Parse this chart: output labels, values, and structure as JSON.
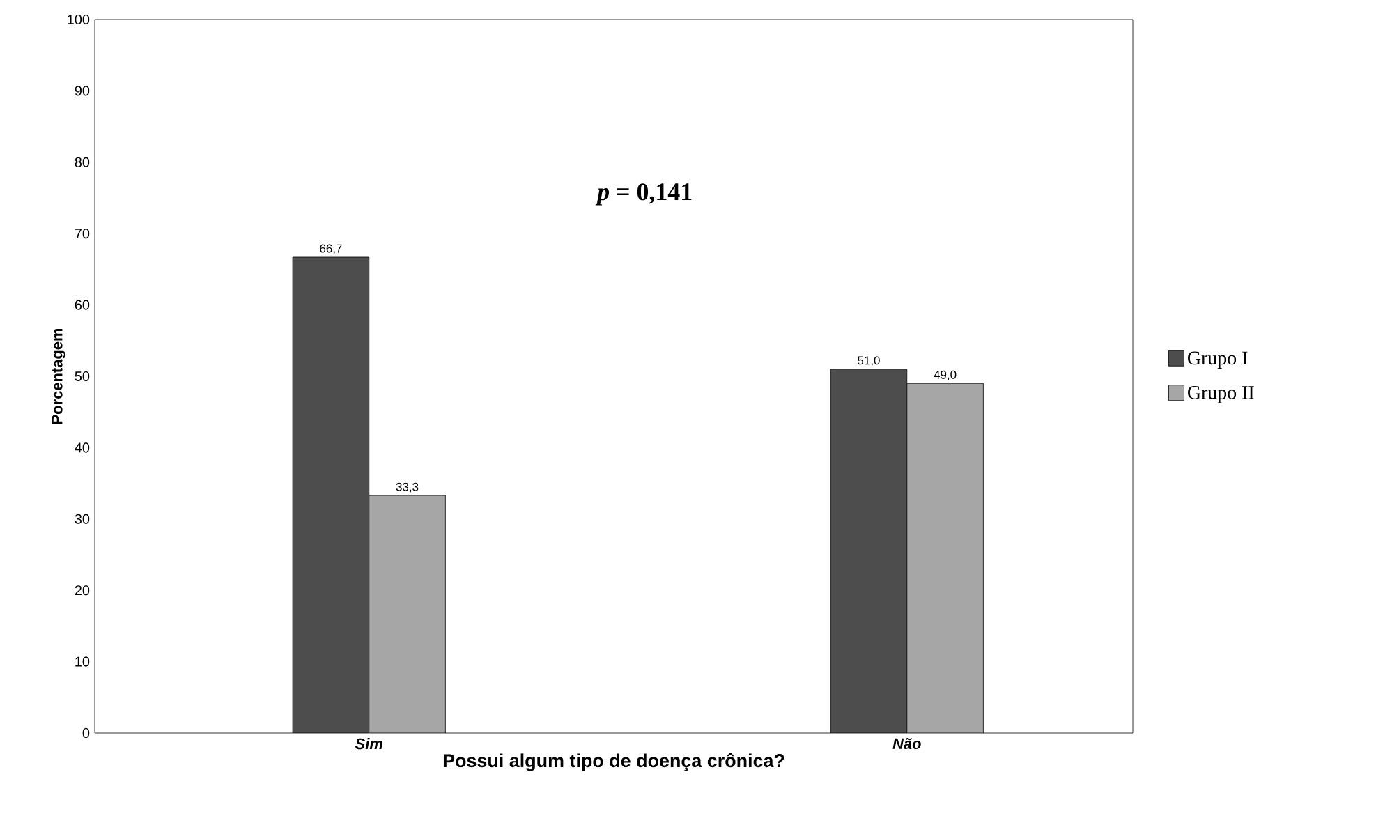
{
  "chart_data": {
    "type": "bar",
    "xlabel": "Possui algum tipo de doença crônica?",
    "ylabel": "Porcentagem",
    "categories": [
      "Sim",
      "Não"
    ],
    "series": [
      {
        "name": "Grupo I",
        "color": "#4d4d4d",
        "values": [
          66.7,
          51.0
        ],
        "value_labels": [
          "66,7",
          "51,0"
        ]
      },
      {
        "name": "Grupo II",
        "color": "#a6a6a6",
        "values": [
          33.3,
          49.0
        ],
        "value_labels": [
          "33,3",
          "49,0"
        ]
      }
    ],
    "ylim": [
      0,
      100
    ],
    "yticks": [
      0,
      10,
      20,
      30,
      40,
      50,
      60,
      70,
      80,
      90,
      100
    ],
    "annotations": [
      "*p* = 0,141"
    ],
    "legend": "right",
    "grid": false
  }
}
